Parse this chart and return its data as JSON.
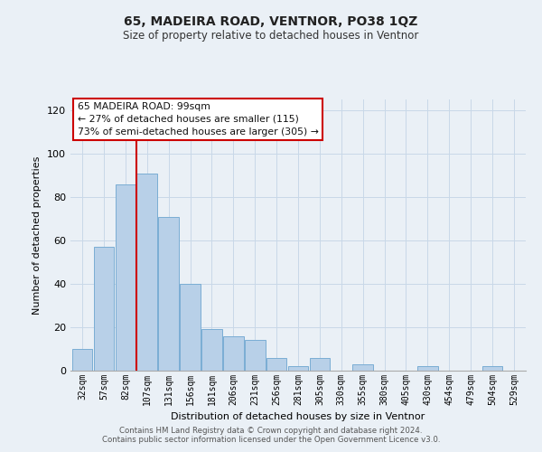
{
  "title": "65, MADEIRA ROAD, VENTNOR, PO38 1QZ",
  "subtitle": "Size of property relative to detached houses in Ventnor",
  "xlabel": "Distribution of detached houses by size in Ventnor",
  "ylabel": "Number of detached properties",
  "categories": [
    "32sqm",
    "57sqm",
    "82sqm",
    "107sqm",
    "131sqm",
    "156sqm",
    "181sqm",
    "206sqm",
    "231sqm",
    "256sqm",
    "281sqm",
    "305sqm",
    "330sqm",
    "355sqm",
    "380sqm",
    "405sqm",
    "430sqm",
    "454sqm",
    "479sqm",
    "504sqm",
    "529sqm"
  ],
  "values": [
    10,
    57,
    86,
    91,
    71,
    40,
    19,
    16,
    14,
    6,
    2,
    6,
    0,
    3,
    0,
    0,
    2,
    0,
    0,
    2,
    0
  ],
  "bar_color": "#b8d0e8",
  "bar_edge_color": "#7aadd4",
  "grid_color": "#c8d8e8",
  "vline_color": "#cc0000",
  "vline_x_index": 3,
  "annotation_title": "65 MADEIRA ROAD: 99sqm",
  "annotation_line1": "← 27% of detached houses are smaller (115)",
  "annotation_line2": "73% of semi-detached houses are larger (305) →",
  "annotation_box_facecolor": "#ffffff",
  "annotation_box_edgecolor": "#cc0000",
  "ylim": [
    0,
    125
  ],
  "yticks": [
    0,
    20,
    40,
    60,
    80,
    100,
    120
  ],
  "footer1": "Contains HM Land Registry data © Crown copyright and database right 2024.",
  "footer2": "Contains public sector information licensed under the Open Government Licence v3.0.",
  "bg_color": "#eaf0f6",
  "title_fontsize": 10,
  "subtitle_fontsize": 8.5,
  "ylabel_fontsize": 8,
  "xlabel_fontsize": 8
}
